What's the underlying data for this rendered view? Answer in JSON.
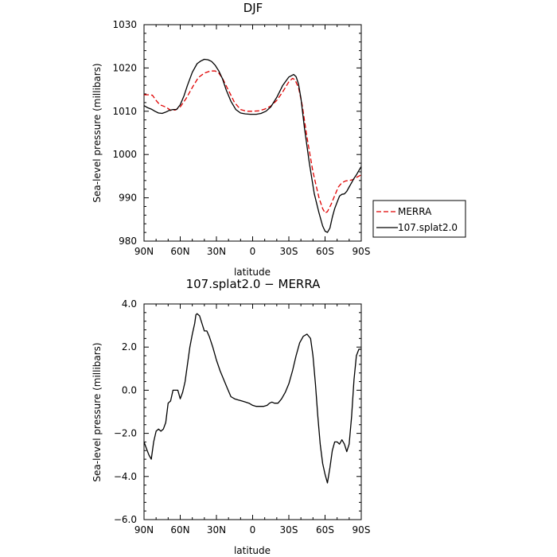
{
  "chart_data": [
    {
      "type": "line",
      "title": "DJF",
      "xlabel": "latitude",
      "ylabel": "Sea-level pressure (millibars)",
      "xlim": [
        90,
        -90
      ],
      "ylim": [
        980,
        1030
      ],
      "x_ticks": [
        90,
        60,
        30,
        0,
        -30,
        -60,
        -90
      ],
      "x_tick_labels": [
        "90N",
        "60N",
        "30N",
        "0",
        "30S",
        "60S",
        "90S"
      ],
      "y_ticks": [
        980,
        990,
        1000,
        1010,
        1020,
        1030
      ],
      "y_tick_labels": [
        "980",
        "990",
        "1000",
        "1010",
        "1020",
        "1030"
      ],
      "legend": "right-bottom",
      "series": [
        {
          "name": "MERRA",
          "color": "#e00000",
          "style": "dashed",
          "x": [
            90,
            86,
            83,
            80,
            77,
            74,
            71,
            68,
            64,
            60,
            55,
            50,
            45,
            40,
            35,
            31,
            28,
            25,
            20,
            15,
            10,
            5,
            0,
            -5,
            -10,
            -15,
            -20,
            -25,
            -30,
            -33,
            -35,
            -38,
            -41,
            -45,
            -50,
            -55,
            -58,
            -60,
            -62,
            -65,
            -68,
            -71,
            -74,
            -77,
            -80,
            -83,
            -86,
            -90
          ],
          "y": [
            1013.8,
            1013.8,
            1013.7,
            1012.5,
            1011.5,
            1011.2,
            1010.8,
            1010.2,
            1010.3,
            1011.0,
            1013.0,
            1015.5,
            1017.8,
            1018.8,
            1019.3,
            1019.3,
            1018.8,
            1017.6,
            1014.8,
            1012.0,
            1010.4,
            1010.0,
            1010.0,
            1010.1,
            1010.5,
            1011.2,
            1012.5,
            1014.5,
            1016.8,
            1017.6,
            1017.3,
            1015.5,
            1011.5,
            1004.0,
            996.0,
            990.0,
            987.5,
            986.5,
            986.8,
            988.5,
            990.5,
            992.5,
            993.5,
            993.9,
            994.0,
            994.2,
            994.7,
            995.3
          ]
        },
        {
          "name": "107.splat2.0",
          "color": "#000000",
          "style": "solid",
          "x": [
            90,
            87,
            84,
            81,
            78,
            75,
            72,
            69,
            66,
            63,
            60,
            57,
            54,
            50,
            46,
            43,
            40,
            37,
            34,
            31,
            28,
            25,
            22,
            18,
            14,
            10,
            6,
            2,
            0,
            -3,
            -7,
            -11,
            -15,
            -20,
            -25,
            -30,
            -34,
            -36,
            -38,
            -40,
            -43,
            -47,
            -51,
            -55,
            -58,
            -60,
            -62,
            -64,
            -66,
            -68,
            -70,
            -72,
            -74,
            -76,
            -78,
            -80,
            -82,
            -84,
            -86,
            -88,
            -90
          ],
          "y": [
            1011.3,
            1010.8,
            1010.5,
            1010.0,
            1009.6,
            1009.5,
            1009.8,
            1010.2,
            1010.4,
            1010.4,
            1011.5,
            1013.5,
            1016.0,
            1019.0,
            1021.0,
            1021.6,
            1022.0,
            1021.9,
            1021.5,
            1020.6,
            1019.3,
            1017.5,
            1015.0,
            1012.3,
            1010.4,
            1009.6,
            1009.4,
            1009.3,
            1009.3,
            1009.3,
            1009.5,
            1010.0,
            1011.0,
            1013.2,
            1016.0,
            1017.9,
            1018.5,
            1018.0,
            1016.3,
            1013.0,
            1006.0,
            998.0,
            991.0,
            986.5,
            983.5,
            982.3,
            982.0,
            983.0,
            985.5,
            987.5,
            989.0,
            990.4,
            990.8,
            990.9,
            991.5,
            992.5,
            993.5,
            994.5,
            995.3,
            996.3,
            997.2
          ]
        }
      ]
    },
    {
      "type": "line",
      "title": "107.splat2.0 − MERRA",
      "xlabel": "latitude",
      "ylabel": "Sea-level pressure (millibars)",
      "xlim": [
        90,
        -90
      ],
      "ylim": [
        -6,
        4
      ],
      "x_ticks": [
        90,
        60,
        30,
        0,
        -30,
        -60,
        -90
      ],
      "x_tick_labels": [
        "90N",
        "60N",
        "30N",
        "0",
        "30S",
        "60S",
        "90S"
      ],
      "y_ticks": [
        -6,
        -4,
        -2,
        0,
        2,
        4
      ],
      "y_tick_labels": [
        "−6.0",
        "−4.0",
        "−2.0",
        "0.0",
        "2.0",
        "4.0"
      ],
      "series": [
        {
          "color": "#000000",
          "style": "solid",
          "x": [
            90,
            88,
            86,
            84,
            82,
            80,
            78,
            76,
            74,
            72,
            70,
            68,
            66,
            64,
            62,
            60,
            58,
            56,
            54,
            52,
            50,
            48,
            47,
            46,
            44,
            42,
            40,
            38,
            36,
            33,
            30,
            27,
            24,
            21,
            18,
            15,
            12,
            9,
            6,
            3,
            0,
            -3,
            -6,
            -9,
            -12,
            -14,
            -16,
            -18,
            -21,
            -24,
            -27,
            -30,
            -33,
            -36,
            -39,
            -42,
            -45,
            -48,
            -50,
            -52,
            -54,
            -56,
            -58,
            -60,
            -62,
            -64,
            -66,
            -68,
            -70,
            -72,
            -74,
            -76,
            -78,
            -80,
            -82,
            -84,
            -86,
            -88,
            -90
          ],
          "y": [
            -2.4,
            -2.7,
            -3.0,
            -3.2,
            -2.4,
            -1.9,
            -1.8,
            -1.9,
            -1.8,
            -1.5,
            -0.6,
            -0.5,
            0.0,
            0.0,
            0.0,
            -0.4,
            -0.1,
            0.4,
            1.2,
            2.0,
            2.6,
            3.1,
            3.5,
            3.55,
            3.45,
            3.1,
            2.75,
            2.75,
            2.5,
            2.0,
            1.4,
            0.9,
            0.5,
            0.1,
            -0.3,
            -0.4,
            -0.45,
            -0.5,
            -0.55,
            -0.6,
            -0.7,
            -0.75,
            -0.75,
            -0.75,
            -0.7,
            -0.6,
            -0.55,
            -0.6,
            -0.6,
            -0.4,
            -0.1,
            0.3,
            0.9,
            1.6,
            2.2,
            2.5,
            2.6,
            2.4,
            1.6,
            0.3,
            -1.2,
            -2.5,
            -3.4,
            -3.9,
            -4.3,
            -3.6,
            -2.8,
            -2.4,
            -2.4,
            -2.5,
            -2.3,
            -2.5,
            -2.85,
            -2.5,
            -1.2,
            0.5,
            1.6,
            1.9,
            1.9
          ]
        }
      ]
    }
  ]
}
